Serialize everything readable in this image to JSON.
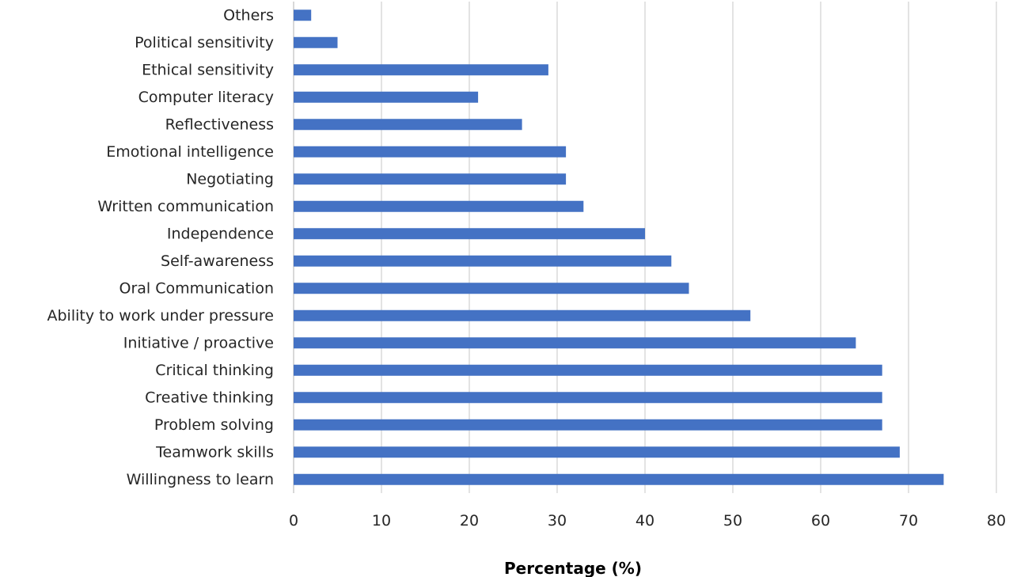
{
  "chart_data": {
    "type": "bar",
    "orientation": "horizontal",
    "categories": [
      "Willingness to learn",
      "Teamwork skills",
      "Problem solving",
      "Creative thinking",
      "Critical thinking",
      "Initiative / proactive",
      "Ability to work under pressure",
      "Oral Communication",
      "Self-awareness",
      "Independence",
      "Written communication",
      "Negotiating",
      "Emotional intelligence",
      "Reflectiveness",
      "Computer literacy",
      "Ethical sensitivity",
      "Political sensitivity",
      "Others"
    ],
    "values": [
      74,
      69,
      67,
      67,
      67,
      64,
      52,
      45,
      43,
      40,
      33,
      31,
      31,
      26,
      21,
      29,
      5,
      2
    ],
    "xlabel": "Percentage (%)",
    "ylabel": "",
    "xlim": [
      0,
      80
    ],
    "xticks": [
      0,
      10,
      20,
      30,
      40,
      50,
      60,
      70,
      80
    ],
    "grid": "vertical",
    "bar_color": "#4472c4"
  }
}
